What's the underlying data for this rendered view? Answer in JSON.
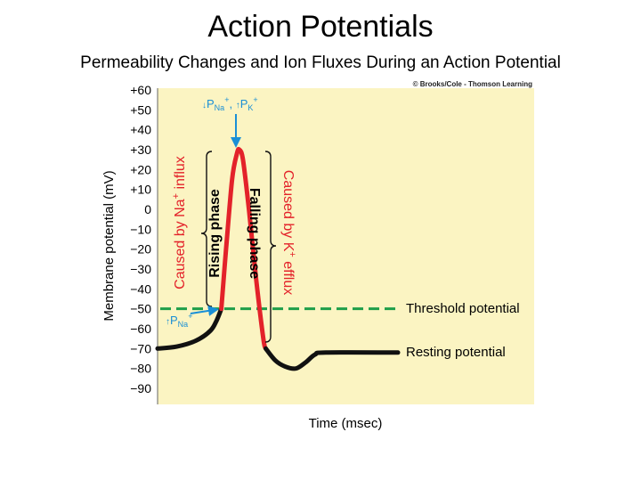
{
  "slide": {
    "title": "Action Potentials",
    "subtitle": "Permeability Changes and Ion Fluxes During an Action Potential"
  },
  "chart_data": {
    "type": "line",
    "xlabel": "Time (msec)",
    "ylabel": "Membrane potential (mV)",
    "ylim": [
      -90,
      60
    ],
    "yticks": [
      60,
      50,
      40,
      30,
      20,
      10,
      0,
      -10,
      -20,
      -30,
      -40,
      -50,
      -60,
      -70,
      -80,
      -90
    ],
    "ytick_labels": [
      "+60",
      "+50",
      "+40",
      "+30",
      "+20",
      "+10",
      "0",
      "−10",
      "−20",
      "−30",
      "−40",
      "−50",
      "−60",
      "−70",
      "−80",
      "−90"
    ],
    "xlim": [
      0,
      10
    ],
    "xticks_shown": false,
    "grid": false,
    "background_color": "#fbf4c2",
    "copyright": "© Brooks/Cole - Thomson Learning",
    "series": [
      {
        "segment": "depolarizing",
        "color": "#111111",
        "points": [
          [
            0,
            -70
          ],
          [
            0.8,
            -69
          ],
          [
            1.6,
            -66
          ],
          [
            2.2,
            -61
          ],
          [
            2.45,
            -56
          ],
          [
            2.65,
            -50
          ]
        ]
      },
      {
        "segment": "action-potential",
        "color": "#e3222a",
        "points": [
          [
            2.65,
            -50
          ],
          [
            2.85,
            -20
          ],
          [
            3.1,
            15
          ],
          [
            3.3,
            28
          ],
          [
            3.4,
            30
          ],
          [
            3.55,
            25
          ],
          [
            3.8,
            0
          ],
          [
            4.1,
            -35
          ],
          [
            4.4,
            -65
          ],
          [
            4.5,
            -70
          ]
        ]
      },
      {
        "segment": "recovery",
        "color": "#111111",
        "points": [
          [
            4.5,
            -70
          ],
          [
            4.9,
            -76
          ],
          [
            5.3,
            -79
          ],
          [
            5.75,
            -80
          ],
          [
            6.15,
            -77
          ],
          [
            6.55,
            -73
          ],
          [
            7.0,
            -72
          ],
          [
            10,
            -72
          ]
        ]
      }
    ],
    "threshold": {
      "value": -50,
      "label": "Threshold potential",
      "color": "#1e9e4a"
    },
    "resting": {
      "value": -72,
      "label": "Resting potential"
    },
    "annotations": {
      "rising_phase": "Rising phase",
      "falling_phase": "Falling phase",
      "na_influx": {
        "prefix": "Caused by Na",
        "sup": "+",
        "suffix": " influx",
        "color": "#e3222a"
      },
      "k_efflux": {
        "prefix": "Caused by K",
        "sup": "+",
        "suffix": " efflux",
        "color": "#e3222a"
      },
      "peak_perm": {
        "na_arrow": "↓",
        "na_p": "P",
        "na_sub": "Na",
        "na_sup": "+",
        "sep": ", ",
        "k_arrow": "↑",
        "k_p": "P",
        "k_sub": "K",
        "k_sup": "+"
      },
      "threshold_perm": {
        "arrow": "↑",
        "p": "P",
        "sub": "Na",
        "sup": "+"
      },
      "annotation_color": "#1a8fd6"
    }
  }
}
